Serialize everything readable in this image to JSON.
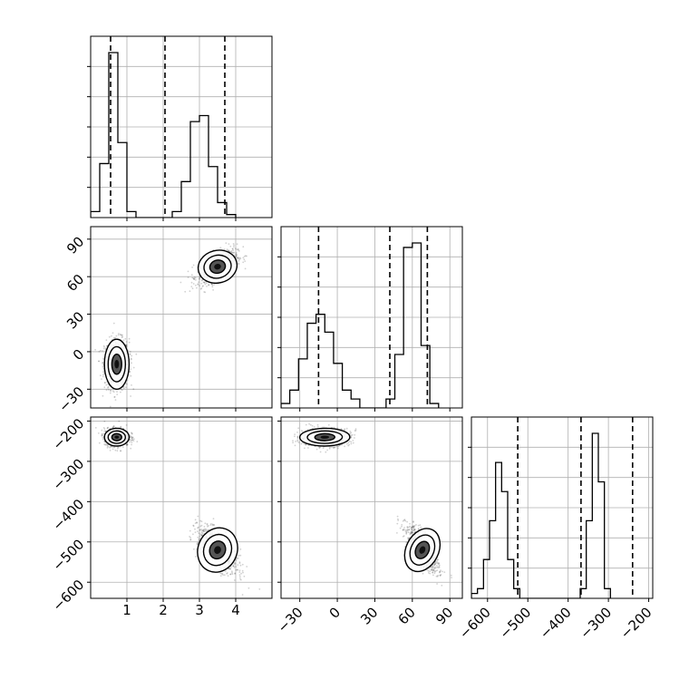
{
  "chart_data": {
    "type": "corner",
    "parameters": [
      {
        "range": [
          0,
          5
        ],
        "ticks": [
          1,
          2,
          3,
          4
        ],
        "tick_labels": [
          "1",
          "2",
          "3",
          "4"
        ]
      },
      {
        "range": [
          -45,
          100
        ],
        "ticks": [
          -30,
          0,
          30,
          60,
          90
        ],
        "tick_labels": [
          "−30",
          "0",
          "30",
          "60",
          "90"
        ]
      },
      {
        "range": [
          -640,
          -190
        ],
        "ticks": [
          -600,
          -500,
          -400,
          -300,
          -200
        ],
        "tick_labels": [
          "−600",
          "−500",
          "−400",
          "−300",
          "−200"
        ]
      }
    ],
    "quantile_lines": [
      [
        0.55,
        2.05,
        3.7
      ],
      [
        -15,
        42,
        72
      ],
      [
        -525,
        -368,
        -240
      ]
    ],
    "histograms": [
      {
        "bin_start": 0,
        "bin_width": 0.25,
        "counts": [
          0.02,
          0.18,
          0.55,
          0.25,
          0.02,
          0,
          0,
          0,
          0,
          0.02,
          0.12,
          0.32,
          0.34,
          0.17,
          0.05,
          0.01
        ]
      },
      {
        "bin_start": -45,
        "bin_width": 7,
        "counts": [
          0.01,
          0.04,
          0.11,
          0.19,
          0.21,
          0.17,
          0.1,
          0.04,
          0.02,
          0,
          0,
          0,
          0.02,
          0.12,
          0.36,
          0.37,
          0.14,
          0.01
        ]
      },
      {
        "bin_start": -640,
        "bin_width": 15,
        "counts": [
          0.01,
          0.02,
          0.08,
          0.16,
          0.28,
          0.22,
          0.08,
          0.02,
          0,
          0,
          0,
          0,
          0,
          0,
          0,
          0,
          0,
          0,
          0.02,
          0.16,
          0.34,
          0.24,
          0.02
        ]
      }
    ],
    "modes": [
      [
        {
          "mean": 0.72,
          "sd": 0.17,
          "weight": 0.5
        },
        {
          "mean": 3.5,
          "sd": 0.27,
          "weight": 0.5
        }
      ],
      [
        {
          "mean": -10,
          "sd": 10,
          "weight": 0.5
        },
        {
          "mean": 68,
          "sd": 6.5,
          "weight": 0.5
        }
      ],
      [
        {
          "mean": -240,
          "sd": 11,
          "weight": 0.5
        },
        {
          "mean": -520,
          "sd": 28,
          "weight": 0.5
        }
      ]
    ],
    "grid": true
  }
}
